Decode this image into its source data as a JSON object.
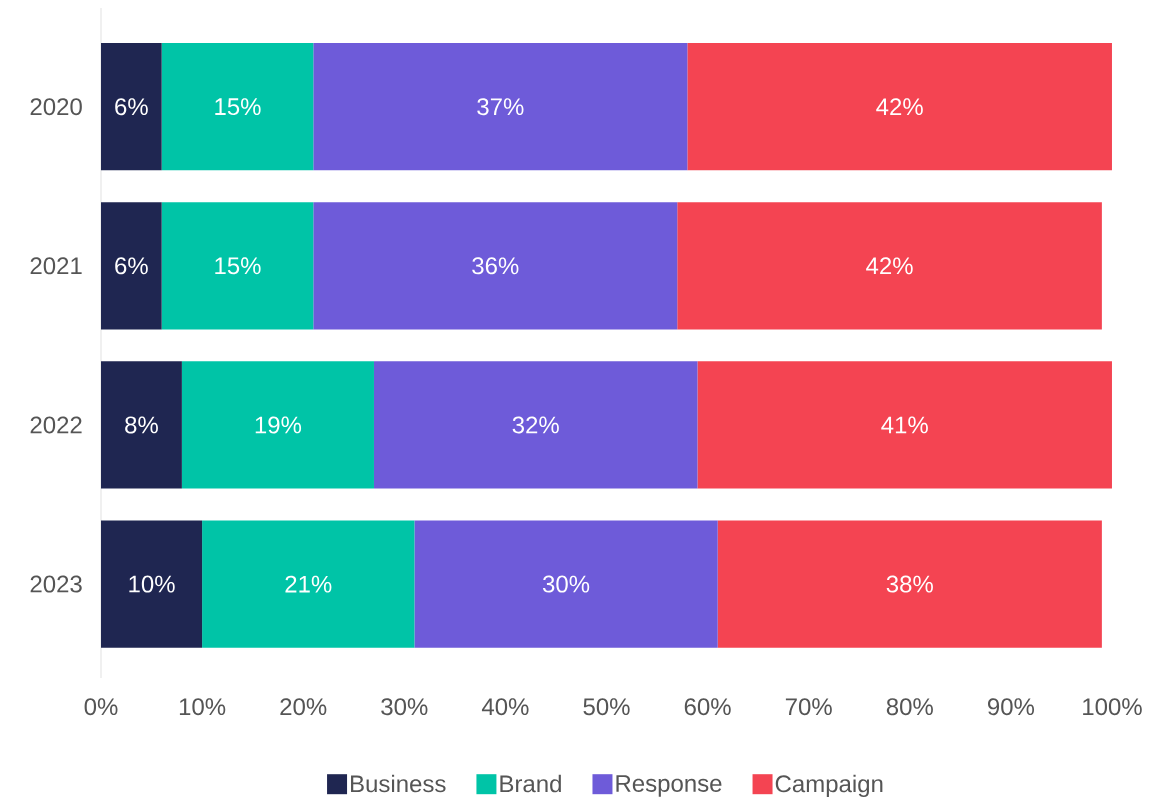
{
  "chart_data": {
    "type": "bar",
    "orientation": "horizontal",
    "stacked": true,
    "categories": [
      "2020",
      "2021",
      "2022",
      "2023"
    ],
    "series": [
      {
        "name": "Business",
        "color": "#1f2651",
        "values": [
          6,
          6,
          8,
          10
        ],
        "value_labels": [
          "6%",
          "6%",
          "8%",
          "10%"
        ]
      },
      {
        "name": "Brand",
        "color": "#00c4a7",
        "values": [
          15,
          15,
          19,
          21
        ],
        "value_labels": [
          "15%",
          "15%",
          "19%",
          "21%"
        ]
      },
      {
        "name": "Response",
        "color": "#6e5bd9",
        "values": [
          37,
          36,
          32,
          30
        ],
        "value_labels": [
          "37%",
          "36%",
          "32%",
          "30%"
        ]
      },
      {
        "name": "Campaign",
        "color": "#f44452",
        "values": [
          42,
          42,
          41,
          38
        ],
        "value_labels": [
          "42%",
          "42%",
          "41%",
          "38%"
        ]
      }
    ],
    "xlim": [
      0,
      100
    ],
    "xticks": [
      {
        "value": 0,
        "label": "0%"
      },
      {
        "value": 10,
        "label": "10%"
      },
      {
        "value": 20,
        "label": "20%"
      },
      {
        "value": 30,
        "label": "30%"
      },
      {
        "value": 40,
        "label": "40%"
      },
      {
        "value": 50,
        "label": "50%"
      },
      {
        "value": 60,
        "label": "60%"
      },
      {
        "value": 70,
        "label": "70%"
      },
      {
        "value": 80,
        "label": "80%"
      },
      {
        "value": 90,
        "label": "90%"
      },
      {
        "value": 100,
        "label": "100%"
      }
    ],
    "grid": false,
    "legend": "bottom"
  }
}
